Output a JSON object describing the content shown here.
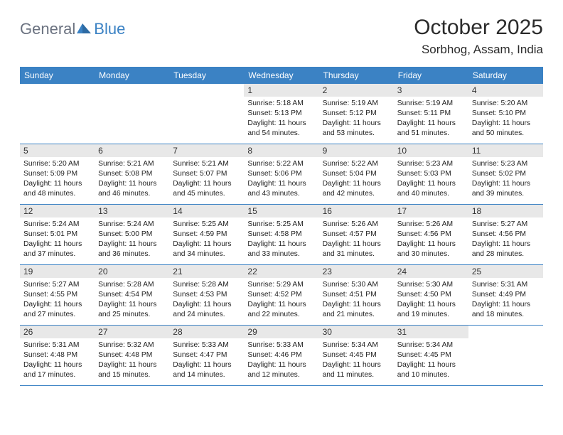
{
  "header": {
    "logo_general": "General",
    "logo_blue": "Blue",
    "month_title": "October 2025",
    "location": "Sorbhog, Assam, India"
  },
  "colors": {
    "brand": "#3b82c4",
    "logo_gray": "#6b7280",
    "header_row_bg": "#3b82c4",
    "header_row_text": "#ffffff",
    "daynum_bg": "#e8e8e8",
    "text": "#222222",
    "page_bg": "#ffffff"
  },
  "day_names": [
    "Sunday",
    "Monday",
    "Tuesday",
    "Wednesday",
    "Thursday",
    "Friday",
    "Saturday"
  ],
  "weeks": [
    [
      {
        "day": "",
        "sunrise": "",
        "sunset": "",
        "daylight": ""
      },
      {
        "day": "",
        "sunrise": "",
        "sunset": "",
        "daylight": ""
      },
      {
        "day": "",
        "sunrise": "",
        "sunset": "",
        "daylight": ""
      },
      {
        "day": "1",
        "sunrise": "Sunrise: 5:18 AM",
        "sunset": "Sunset: 5:13 PM",
        "daylight": "Daylight: 11 hours and 54 minutes."
      },
      {
        "day": "2",
        "sunrise": "Sunrise: 5:19 AM",
        "sunset": "Sunset: 5:12 PM",
        "daylight": "Daylight: 11 hours and 53 minutes."
      },
      {
        "day": "3",
        "sunrise": "Sunrise: 5:19 AM",
        "sunset": "Sunset: 5:11 PM",
        "daylight": "Daylight: 11 hours and 51 minutes."
      },
      {
        "day": "4",
        "sunrise": "Sunrise: 5:20 AM",
        "sunset": "Sunset: 5:10 PM",
        "daylight": "Daylight: 11 hours and 50 minutes."
      }
    ],
    [
      {
        "day": "5",
        "sunrise": "Sunrise: 5:20 AM",
        "sunset": "Sunset: 5:09 PM",
        "daylight": "Daylight: 11 hours and 48 minutes."
      },
      {
        "day": "6",
        "sunrise": "Sunrise: 5:21 AM",
        "sunset": "Sunset: 5:08 PM",
        "daylight": "Daylight: 11 hours and 46 minutes."
      },
      {
        "day": "7",
        "sunrise": "Sunrise: 5:21 AM",
        "sunset": "Sunset: 5:07 PM",
        "daylight": "Daylight: 11 hours and 45 minutes."
      },
      {
        "day": "8",
        "sunrise": "Sunrise: 5:22 AM",
        "sunset": "Sunset: 5:06 PM",
        "daylight": "Daylight: 11 hours and 43 minutes."
      },
      {
        "day": "9",
        "sunrise": "Sunrise: 5:22 AM",
        "sunset": "Sunset: 5:04 PM",
        "daylight": "Daylight: 11 hours and 42 minutes."
      },
      {
        "day": "10",
        "sunrise": "Sunrise: 5:23 AM",
        "sunset": "Sunset: 5:03 PM",
        "daylight": "Daylight: 11 hours and 40 minutes."
      },
      {
        "day": "11",
        "sunrise": "Sunrise: 5:23 AM",
        "sunset": "Sunset: 5:02 PM",
        "daylight": "Daylight: 11 hours and 39 minutes."
      }
    ],
    [
      {
        "day": "12",
        "sunrise": "Sunrise: 5:24 AM",
        "sunset": "Sunset: 5:01 PM",
        "daylight": "Daylight: 11 hours and 37 minutes."
      },
      {
        "day": "13",
        "sunrise": "Sunrise: 5:24 AM",
        "sunset": "Sunset: 5:00 PM",
        "daylight": "Daylight: 11 hours and 36 minutes."
      },
      {
        "day": "14",
        "sunrise": "Sunrise: 5:25 AM",
        "sunset": "Sunset: 4:59 PM",
        "daylight": "Daylight: 11 hours and 34 minutes."
      },
      {
        "day": "15",
        "sunrise": "Sunrise: 5:25 AM",
        "sunset": "Sunset: 4:58 PM",
        "daylight": "Daylight: 11 hours and 33 minutes."
      },
      {
        "day": "16",
        "sunrise": "Sunrise: 5:26 AM",
        "sunset": "Sunset: 4:57 PM",
        "daylight": "Daylight: 11 hours and 31 minutes."
      },
      {
        "day": "17",
        "sunrise": "Sunrise: 5:26 AM",
        "sunset": "Sunset: 4:56 PM",
        "daylight": "Daylight: 11 hours and 30 minutes."
      },
      {
        "day": "18",
        "sunrise": "Sunrise: 5:27 AM",
        "sunset": "Sunset: 4:56 PM",
        "daylight": "Daylight: 11 hours and 28 minutes."
      }
    ],
    [
      {
        "day": "19",
        "sunrise": "Sunrise: 5:27 AM",
        "sunset": "Sunset: 4:55 PM",
        "daylight": "Daylight: 11 hours and 27 minutes."
      },
      {
        "day": "20",
        "sunrise": "Sunrise: 5:28 AM",
        "sunset": "Sunset: 4:54 PM",
        "daylight": "Daylight: 11 hours and 25 minutes."
      },
      {
        "day": "21",
        "sunrise": "Sunrise: 5:28 AM",
        "sunset": "Sunset: 4:53 PM",
        "daylight": "Daylight: 11 hours and 24 minutes."
      },
      {
        "day": "22",
        "sunrise": "Sunrise: 5:29 AM",
        "sunset": "Sunset: 4:52 PM",
        "daylight": "Daylight: 11 hours and 22 minutes."
      },
      {
        "day": "23",
        "sunrise": "Sunrise: 5:30 AM",
        "sunset": "Sunset: 4:51 PM",
        "daylight": "Daylight: 11 hours and 21 minutes."
      },
      {
        "day": "24",
        "sunrise": "Sunrise: 5:30 AM",
        "sunset": "Sunset: 4:50 PM",
        "daylight": "Daylight: 11 hours and 19 minutes."
      },
      {
        "day": "25",
        "sunrise": "Sunrise: 5:31 AM",
        "sunset": "Sunset: 4:49 PM",
        "daylight": "Daylight: 11 hours and 18 minutes."
      }
    ],
    [
      {
        "day": "26",
        "sunrise": "Sunrise: 5:31 AM",
        "sunset": "Sunset: 4:48 PM",
        "daylight": "Daylight: 11 hours and 17 minutes."
      },
      {
        "day": "27",
        "sunrise": "Sunrise: 5:32 AM",
        "sunset": "Sunset: 4:48 PM",
        "daylight": "Daylight: 11 hours and 15 minutes."
      },
      {
        "day": "28",
        "sunrise": "Sunrise: 5:33 AM",
        "sunset": "Sunset: 4:47 PM",
        "daylight": "Daylight: 11 hours and 14 minutes."
      },
      {
        "day": "29",
        "sunrise": "Sunrise: 5:33 AM",
        "sunset": "Sunset: 4:46 PM",
        "daylight": "Daylight: 11 hours and 12 minutes."
      },
      {
        "day": "30",
        "sunrise": "Sunrise: 5:34 AM",
        "sunset": "Sunset: 4:45 PM",
        "daylight": "Daylight: 11 hours and 11 minutes."
      },
      {
        "day": "31",
        "sunrise": "Sunrise: 5:34 AM",
        "sunset": "Sunset: 4:45 PM",
        "daylight": "Daylight: 11 hours and 10 minutes."
      },
      {
        "day": "",
        "sunrise": "",
        "sunset": "",
        "daylight": ""
      }
    ]
  ]
}
